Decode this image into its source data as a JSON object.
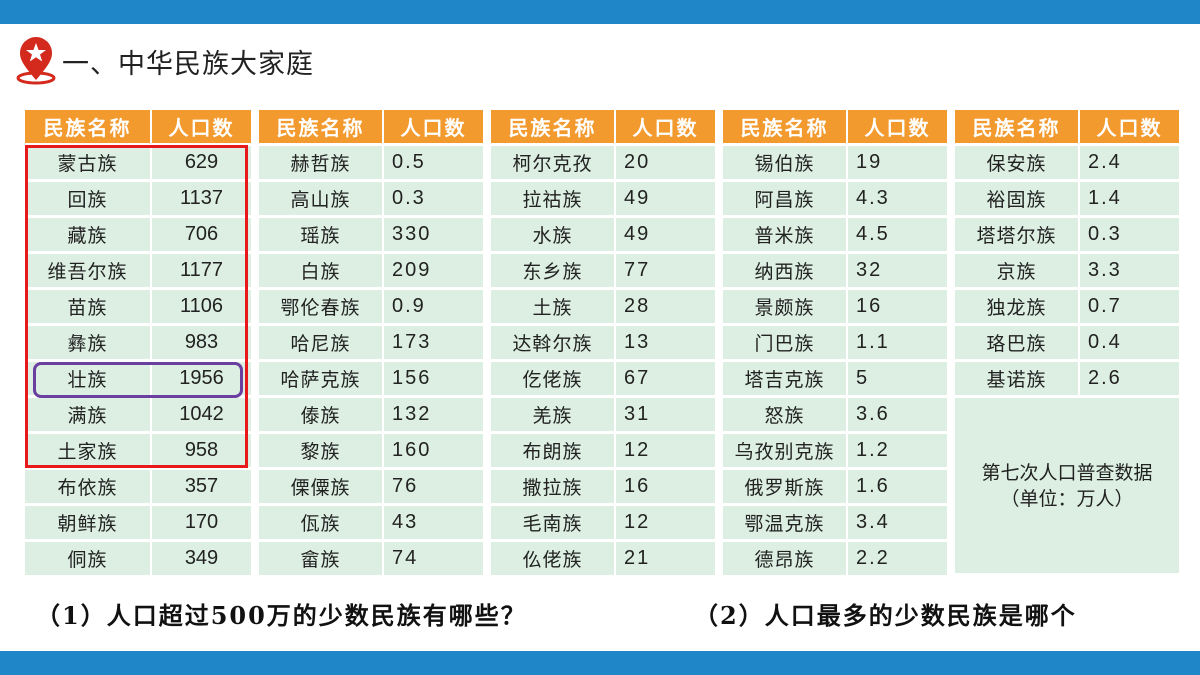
{
  "title": "一、中华民族大家庭",
  "header": {
    "name": "民族名称",
    "pop": "人口数"
  },
  "tables": [
    [
      [
        "蒙古族",
        "629"
      ],
      [
        "回族",
        "1137"
      ],
      [
        "藏族",
        "706"
      ],
      [
        "维吾尔族",
        "1177"
      ],
      [
        "苗族",
        "1106"
      ],
      [
        "彝族",
        "983"
      ],
      [
        "壮族",
        "1956"
      ],
      [
        "满族",
        "1042"
      ],
      [
        "土家族",
        "958"
      ],
      [
        "布依族",
        "357"
      ],
      [
        "朝鲜族",
        "170"
      ],
      [
        "侗族",
        "349"
      ]
    ],
    [
      [
        "赫哲族",
        "0.5"
      ],
      [
        "高山族",
        "0.3"
      ],
      [
        "瑶族",
        "330"
      ],
      [
        "白族",
        "209"
      ],
      [
        "鄂伦春族",
        "0.9"
      ],
      [
        "哈尼族",
        "173"
      ],
      [
        "哈萨克族",
        "156"
      ],
      [
        "傣族",
        "132"
      ],
      [
        "黎族",
        "160"
      ],
      [
        "傈僳族",
        "76"
      ],
      [
        "佤族",
        "43"
      ],
      [
        "畲族",
        "74"
      ]
    ],
    [
      [
        "柯尔克孜",
        "20"
      ],
      [
        "拉祜族",
        "49"
      ],
      [
        "水族",
        "49"
      ],
      [
        "东乡族",
        "77"
      ],
      [
        "土族",
        "28"
      ],
      [
        "达斡尔族",
        "13"
      ],
      [
        "仡佬族",
        "67"
      ],
      [
        "羌族",
        "31"
      ],
      [
        "布朗族",
        "12"
      ],
      [
        "撒拉族",
        "16"
      ],
      [
        "毛南族",
        "12"
      ],
      [
        "仫佬族",
        "21"
      ]
    ],
    [
      [
        "锡伯族",
        "19"
      ],
      [
        "阿昌族",
        "4.3"
      ],
      [
        "普米族",
        "4.5"
      ],
      [
        "纳西族",
        "32"
      ],
      [
        "景颇族",
        "16"
      ],
      [
        "门巴族",
        "1.1"
      ],
      [
        "塔吉克族",
        "5"
      ],
      [
        "怒族",
        "3.6"
      ],
      [
        "乌孜别克族",
        "1.2"
      ],
      [
        "俄罗斯族",
        "1.6"
      ],
      [
        "鄂温克族",
        "3.4"
      ],
      [
        "德昂族",
        "2.2"
      ]
    ],
    [
      [
        "保安族",
        "2.4"
      ],
      [
        "裕固族",
        "1.4"
      ],
      [
        "塔塔尔族",
        "0.3"
      ],
      [
        "京族",
        "3.3"
      ],
      [
        "独龙族",
        "0.7"
      ],
      [
        "珞巴族",
        "0.4"
      ],
      [
        "基诺族",
        "2.6"
      ]
    ]
  ],
  "note_line1": "第七次人口普查数据",
  "note_line2": "（单位：万人）",
  "question1": "（1）人口超过500万的少数民族有哪些？",
  "question2": "（2）人口最多的少数民族是哪个",
  "colors": {
    "bar": "#1f86c8",
    "header": "#f39a2e",
    "cell": "#dcefe2",
    "highlight_red": "#e8191b",
    "highlight_purple": "#6a3fa0"
  }
}
